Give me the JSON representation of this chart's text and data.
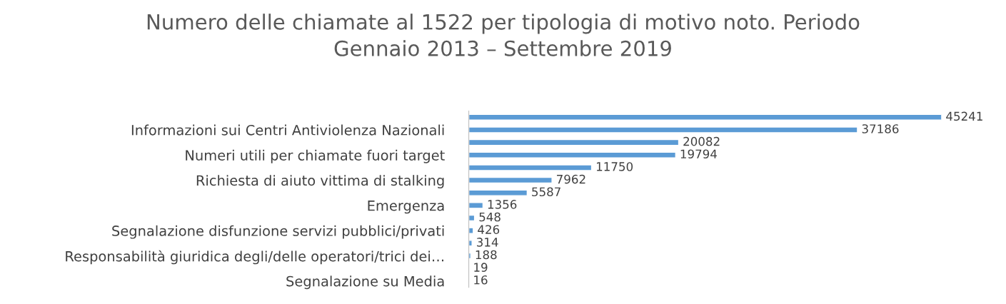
{
  "chart_data": {
    "type": "bar",
    "orientation": "horizontal",
    "title": "Numero delle chiamate al 1522 per tipologia di motivo noto. Periodo Gennaio 2013 – Settembre 2019",
    "categories": [
      null,
      "Informazioni sui Centri Antiviolenza Nazionali",
      null,
      "Numeri utili per chiamate fuori target",
      null,
      "Richiesta di aiuto vittima di stalking",
      null,
      "Emergenza",
      null,
      "Segnalazione disfunzione servizi pubblici/privati",
      null,
      "Responsabilità giuridica degli/delle operatori/trici dei…",
      null,
      "Segnalazione su Media"
    ],
    "values": [
      45241,
      37186,
      20082,
      19794,
      11750,
      7962,
      5587,
      1356,
      548,
      426,
      314,
      188,
      19,
      16
    ],
    "color": "#5b9bd5",
    "data_labels": true,
    "grid": false,
    "legend": false
  }
}
